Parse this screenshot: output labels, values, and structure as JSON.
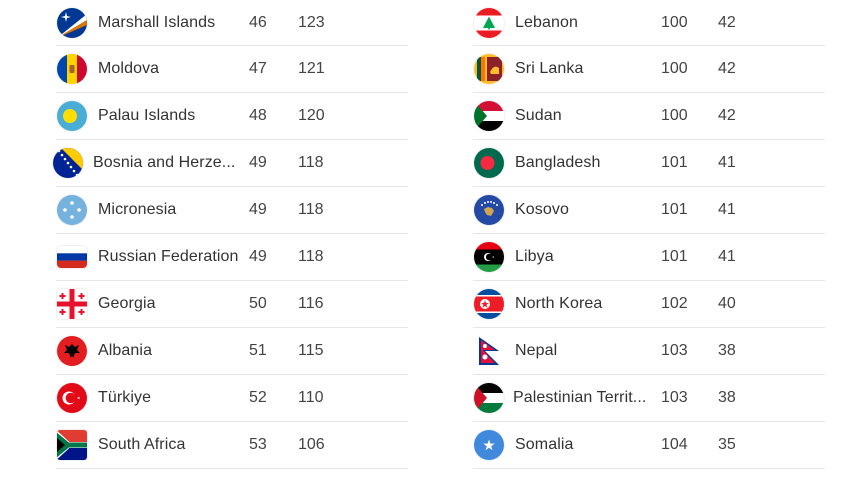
{
  "left_rows": [
    {
      "country": "Marshall Islands",
      "rank": "46",
      "score": "123",
      "flag_icon": "marshall-islands-flag-icon"
    },
    {
      "country": "Moldova",
      "rank": "47",
      "score": "121",
      "flag_icon": "moldova-flag-icon"
    },
    {
      "country": "Palau Islands",
      "rank": "48",
      "score": "120",
      "flag_icon": "palau-flag-icon"
    },
    {
      "country": "Bosnia and Herze...",
      "rank": "49",
      "score": "118",
      "flag_icon": "bosnia-flag-icon"
    },
    {
      "country": "Micronesia",
      "rank": "49",
      "score": "118",
      "flag_icon": "micronesia-flag-icon"
    },
    {
      "country": "Russian Federation",
      "rank": "49",
      "score": "118",
      "flag_icon": "russia-flag-icon"
    },
    {
      "country": "Georgia",
      "rank": "50",
      "score": "116",
      "flag_icon": "georgia-flag-icon"
    },
    {
      "country": "Albania",
      "rank": "51",
      "score": "115",
      "flag_icon": "albania-flag-icon"
    },
    {
      "country": "Türkiye",
      "rank": "52",
      "score": "110",
      "flag_icon": "turkiye-flag-icon"
    },
    {
      "country": "South Africa",
      "rank": "53",
      "score": "106",
      "flag_icon": "south-africa-flag-icon"
    }
  ],
  "right_rows": [
    {
      "country": "Lebanon",
      "rank": "100",
      "score": "42",
      "flag_icon": "lebanon-flag-icon"
    },
    {
      "country": "Sri Lanka",
      "rank": "100",
      "score": "42",
      "flag_icon": "sri-lanka-flag-icon"
    },
    {
      "country": "Sudan",
      "rank": "100",
      "score": "42",
      "flag_icon": "sudan-flag-icon"
    },
    {
      "country": "Bangladesh",
      "rank": "101",
      "score": "41",
      "flag_icon": "bangladesh-flag-icon"
    },
    {
      "country": "Kosovo",
      "rank": "101",
      "score": "41",
      "flag_icon": "kosovo-flag-icon"
    },
    {
      "country": "Libya",
      "rank": "101",
      "score": "41",
      "flag_icon": "libya-flag-icon"
    },
    {
      "country": "North Korea",
      "rank": "102",
      "score": "40",
      "flag_icon": "north-korea-flag-icon"
    },
    {
      "country": "Nepal",
      "rank": "103",
      "score": "38",
      "flag_icon": "nepal-flag-icon"
    },
    {
      "country": "Palestinian Territ...",
      "rank": "103",
      "score": "38",
      "flag_icon": "palestine-flag-icon"
    },
    {
      "country": "Somalia",
      "rank": "104",
      "score": "35",
      "flag_icon": "somalia-flag-icon"
    }
  ],
  "colors": {
    "divider": "#e6e6e6",
    "text": "#333333"
  }
}
